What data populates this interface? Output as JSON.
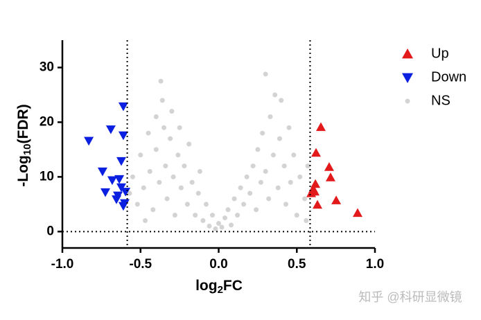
{
  "chart_data": {
    "type": "scatter",
    "x_label": {
      "main": "log",
      "sub": "2",
      "tail": "FC"
    },
    "y_label": {
      "main": "-Log",
      "sub": "10",
      "tail": "(FDR)"
    },
    "xlim": [
      -1.0,
      1.0
    ],
    "ylim": [
      -3,
      35
    ],
    "xticks": [
      {
        "value": -1.0,
        "label": "-1.0"
      },
      {
        "value": -0.5,
        "label": "-0.5"
      },
      {
        "value": 0,
        "label": "0.0"
      },
      {
        "value": 0.5,
        "label": "0.5"
      },
      {
        "value": 1.0,
        "label": "1.0"
      }
    ],
    "yticks": [
      0,
      10,
      20,
      30
    ],
    "thresholds": {
      "x": [
        -0.585,
        0.585
      ],
      "y": 0
    },
    "legend": "right",
    "series": [
      {
        "name": "Up",
        "color": "#e31a1c",
        "marker": "triangle-up",
        "x": [
          0.654,
          0.623,
          0.707,
          0.716,
          0.619,
          0.605,
          0.592,
          0.632,
          0.752,
          0.889,
          0.614
        ],
        "values": [
          19.1,
          14.4,
          11.8,
          9.9,
          8.7,
          7.8,
          7.0,
          4.9,
          5.7,
          3.4,
          7.3
        ]
      },
      {
        "name": "Down",
        "color": "#0a1fe0",
        "marker": "triangle-down",
        "x": [
          -0.831,
          -0.69,
          -0.61,
          -0.61,
          -0.623,
          -0.743,
          -0.681,
          -0.725,
          -0.636,
          -0.623,
          -0.654,
          -0.601,
          -0.61,
          -0.645,
          -0.596
        ],
        "values": [
          16.6,
          18.7,
          22.9,
          17.6,
          12.9,
          11.0,
          9.4,
          7.2,
          9.6,
          8.1,
          5.9,
          5.2,
          4.7,
          6.6,
          7.3
        ]
      },
      {
        "name": "NS",
        "color": "#d3d3d3",
        "marker": "circle",
        "x": [
          -0.55,
          -0.52,
          -0.5,
          -0.48,
          -0.47,
          -0.45,
          -0.44,
          -0.42,
          -0.4,
          -0.4,
          -0.38,
          -0.37,
          -0.36,
          -0.35,
          -0.34,
          -0.33,
          -0.31,
          -0.3,
          -0.29,
          -0.28,
          -0.26,
          -0.25,
          -0.24,
          -0.22,
          -0.2,
          -0.19,
          -0.17,
          -0.15,
          -0.13,
          -0.12,
          -0.1,
          -0.08,
          -0.06,
          -0.04,
          -0.02,
          0,
          0.02,
          0.04,
          0.06,
          0.08,
          0.1,
          0.12,
          0.14,
          0.16,
          0.18,
          0.2,
          0.22,
          0.24,
          0.25,
          0.27,
          0.28,
          0.3,
          0.3,
          0.32,
          0.33,
          0.35,
          0.36,
          0.38,
          0.39,
          0.4,
          0.42,
          0.43,
          0.45,
          0.46,
          0.48,
          0.5,
          0.52,
          0.55,
          0.57,
          0.56,
          -0.57
        ],
        "values": [
          10,
          5,
          14,
          8,
          2,
          18,
          11,
          4,
          21,
          15,
          9,
          27.5,
          24,
          19,
          12,
          6,
          17,
          22,
          10,
          3,
          14,
          19,
          8,
          12,
          5,
          16,
          9,
          3,
          7,
          11,
          2,
          5,
          1,
          3,
          0.5,
          1.5,
          0.8,
          2.5,
          4,
          1.2,
          6,
          3,
          8,
          5,
          10,
          7,
          12,
          4,
          15,
          9,
          18,
          28.8,
          11,
          6,
          21,
          14,
          25,
          8,
          17,
          24,
          12,
          5,
          19,
          9,
          14,
          3,
          10,
          6,
          12,
          2,
          7
        ]
      }
    ]
  },
  "watermark": "知乎 @科研显微镜"
}
